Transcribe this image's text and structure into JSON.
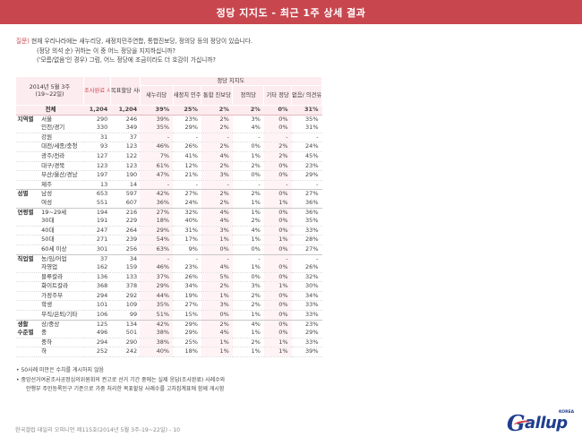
{
  "header": {
    "title": "정당 지지도 - 최근 1주 상세 결과"
  },
  "question": {
    "label": "질문)",
    "line1": " 현재 우리나라에는 새누리당, 새정치민주연합, 통합진보당, 정의당 등의 정당이 있습니다.",
    "line2": "(정당 의석 순) 귀하는 이 중 어느 정당을 지지하십니까?",
    "line3": "('모름/없음'인 경우) 그럼, 어느 정당에 조금이라도 더 호감이 가십니까?"
  },
  "table": {
    "survey_label_1": "2014년 5월 3주",
    "survey_label_2": "(19~22일)",
    "sample_col": "조사완료 사례수 (명)",
    "weighted_col": "목표할당 사례수 (명)",
    "group_header": "정당 지지도",
    "parties": [
      "새누리당",
      "새정치 민주연합",
      "통합 진보당",
      "정의당",
      "기타 정당",
      "없음/ 의견유보"
    ],
    "total": {
      "label": "전체",
      "n": "1,204",
      "w": "1,204",
      "v": [
        "39%",
        "25%",
        "2%",
        "2%",
        "0%",
        "31%"
      ]
    },
    "groups": [
      {
        "name": "지역별",
        "rows": [
          {
            "label": "서울",
            "n": "290",
            "w": "246",
            "v": [
              "39%",
              "23%",
              "2%",
              "3%",
              "0%",
              "35%"
            ]
          },
          {
            "label": "인천/경기",
            "n": "330",
            "w": "349",
            "v": [
              "35%",
              "29%",
              "2%",
              "4%",
              "0%",
              "31%"
            ]
          },
          {
            "label": "강원",
            "n": "31",
            "w": "37",
            "v": [
              "-",
              "-",
              "-",
              "-",
              "-",
              "-"
            ]
          },
          {
            "label": "대전/세종/충청",
            "n": "93",
            "w": "123",
            "v": [
              "46%",
              "26%",
              "2%",
              "0%",
              "2%",
              "24%"
            ]
          },
          {
            "label": "광주/전라",
            "n": "127",
            "w": "122",
            "v": [
              "7%",
              "41%",
              "4%",
              "1%",
              "2%",
              "45%"
            ]
          },
          {
            "label": "대구/경북",
            "n": "123",
            "w": "123",
            "v": [
              "61%",
              "12%",
              "2%",
              "2%",
              "0%",
              "23%"
            ]
          },
          {
            "label": "부산/울산/경남",
            "n": "197",
            "w": "190",
            "v": [
              "47%",
              "21%",
              "3%",
              "0%",
              "0%",
              "29%"
            ]
          },
          {
            "label": "제주",
            "n": "13",
            "w": "14",
            "v": [
              "-",
              "-",
              "-",
              "-",
              "-",
              "-"
            ]
          }
        ]
      },
      {
        "name": "성별",
        "rows": [
          {
            "label": "남성",
            "n": "653",
            "w": "597",
            "v": [
              "42%",
              "27%",
              "2%",
              "2%",
              "0%",
              "27%"
            ]
          },
          {
            "label": "여성",
            "n": "551",
            "w": "607",
            "v": [
              "36%",
              "24%",
              "2%",
              "1%",
              "1%",
              "36%"
            ]
          }
        ]
      },
      {
        "name": "연령별",
        "rows": [
          {
            "label": "19~29세",
            "n": "194",
            "w": "216",
            "v": [
              "27%",
              "32%",
              "4%",
              "1%",
              "0%",
              "36%"
            ]
          },
          {
            "label": "30대",
            "n": "191",
            "w": "229",
            "v": [
              "18%",
              "40%",
              "4%",
              "2%",
              "0%",
              "35%"
            ]
          },
          {
            "label": "40대",
            "n": "247",
            "w": "264",
            "v": [
              "29%",
              "31%",
              "3%",
              "4%",
              "0%",
              "33%"
            ]
          },
          {
            "label": "50대",
            "n": "271",
            "w": "239",
            "v": [
              "54%",
              "17%",
              "1%",
              "1%",
              "1%",
              "28%"
            ]
          },
          {
            "label": "60세 이상",
            "n": "301",
            "w": "256",
            "v": [
              "63%",
              "9%",
              "0%",
              "0%",
              "0%",
              "27%"
            ]
          }
        ]
      },
      {
        "name": "직업별",
        "rows": [
          {
            "label": "농/임/어업",
            "n": "37",
            "w": "34",
            "v": [
              "-",
              "-",
              "-",
              "-",
              "-",
              "-"
            ]
          },
          {
            "label": "자영업",
            "n": "162",
            "w": "159",
            "v": [
              "46%",
              "23%",
              "4%",
              "1%",
              "0%",
              "26%"
            ]
          },
          {
            "label": "블루칼라",
            "n": "136",
            "w": "133",
            "v": [
              "37%",
              "26%",
              "5%",
              "0%",
              "0%",
              "32%"
            ]
          },
          {
            "label": "화이트칼라",
            "n": "368",
            "w": "378",
            "v": [
              "29%",
              "34%",
              "2%",
              "3%",
              "1%",
              "30%"
            ]
          },
          {
            "label": "가정주부",
            "n": "294",
            "w": "292",
            "v": [
              "44%",
              "19%",
              "1%",
              "2%",
              "0%",
              "34%"
            ]
          },
          {
            "label": "학생",
            "n": "101",
            "w": "109",
            "v": [
              "35%",
              "27%",
              "3%",
              "2%",
              "0%",
              "33%"
            ]
          },
          {
            "label": "무직/은퇴/기타",
            "n": "106",
            "w": "99",
            "v": [
              "51%",
              "15%",
              "0%",
              "1%",
              "0%",
              "33%"
            ]
          }
        ]
      },
      {
        "name": "생활 수준별",
        "name1": "생활",
        "name2": "수준별",
        "rows": [
          {
            "label": "상/중상",
            "n": "125",
            "w": "134",
            "v": [
              "42%",
              "29%",
              "2%",
              "4%",
              "0%",
              "23%"
            ]
          },
          {
            "label": "중",
            "n": "496",
            "w": "501",
            "v": [
              "38%",
              "29%",
              "4%",
              "1%",
              "0%",
              "29%"
            ]
          },
          {
            "label": "중하",
            "n": "294",
            "w": "290",
            "v": [
              "38%",
              "25%",
              "1%",
              "2%",
              "1%",
              "33%"
            ]
          },
          {
            "label": "하",
            "n": "252",
            "w": "242",
            "v": [
              "40%",
              "18%",
              "1%",
              "1%",
              "1%",
              "39%"
            ]
          }
        ]
      }
    ]
  },
  "notes": {
    "n1": "• 50사례 미만은 수치를 게시하지 않음",
    "n2": "• 중앙선거여론조사공정심의위원회의 권고로 선거 기간 중에는 실제 응답(조사완료) 사례수와",
    "n3": "안행부 주민등록인구 기준으로 가중 처리한 목표할당 사례수를 고차집계표에 함께 게시함"
  },
  "footer": {
    "text": "한국갤럽 데일리 오피니언 제115호(2014년 5월 3주-19~22일) - 10"
  },
  "logo": {
    "text_g": "G",
    "text_rest": "allup",
    "korea": "KOREA",
    "icon": "gallup-logo"
  }
}
